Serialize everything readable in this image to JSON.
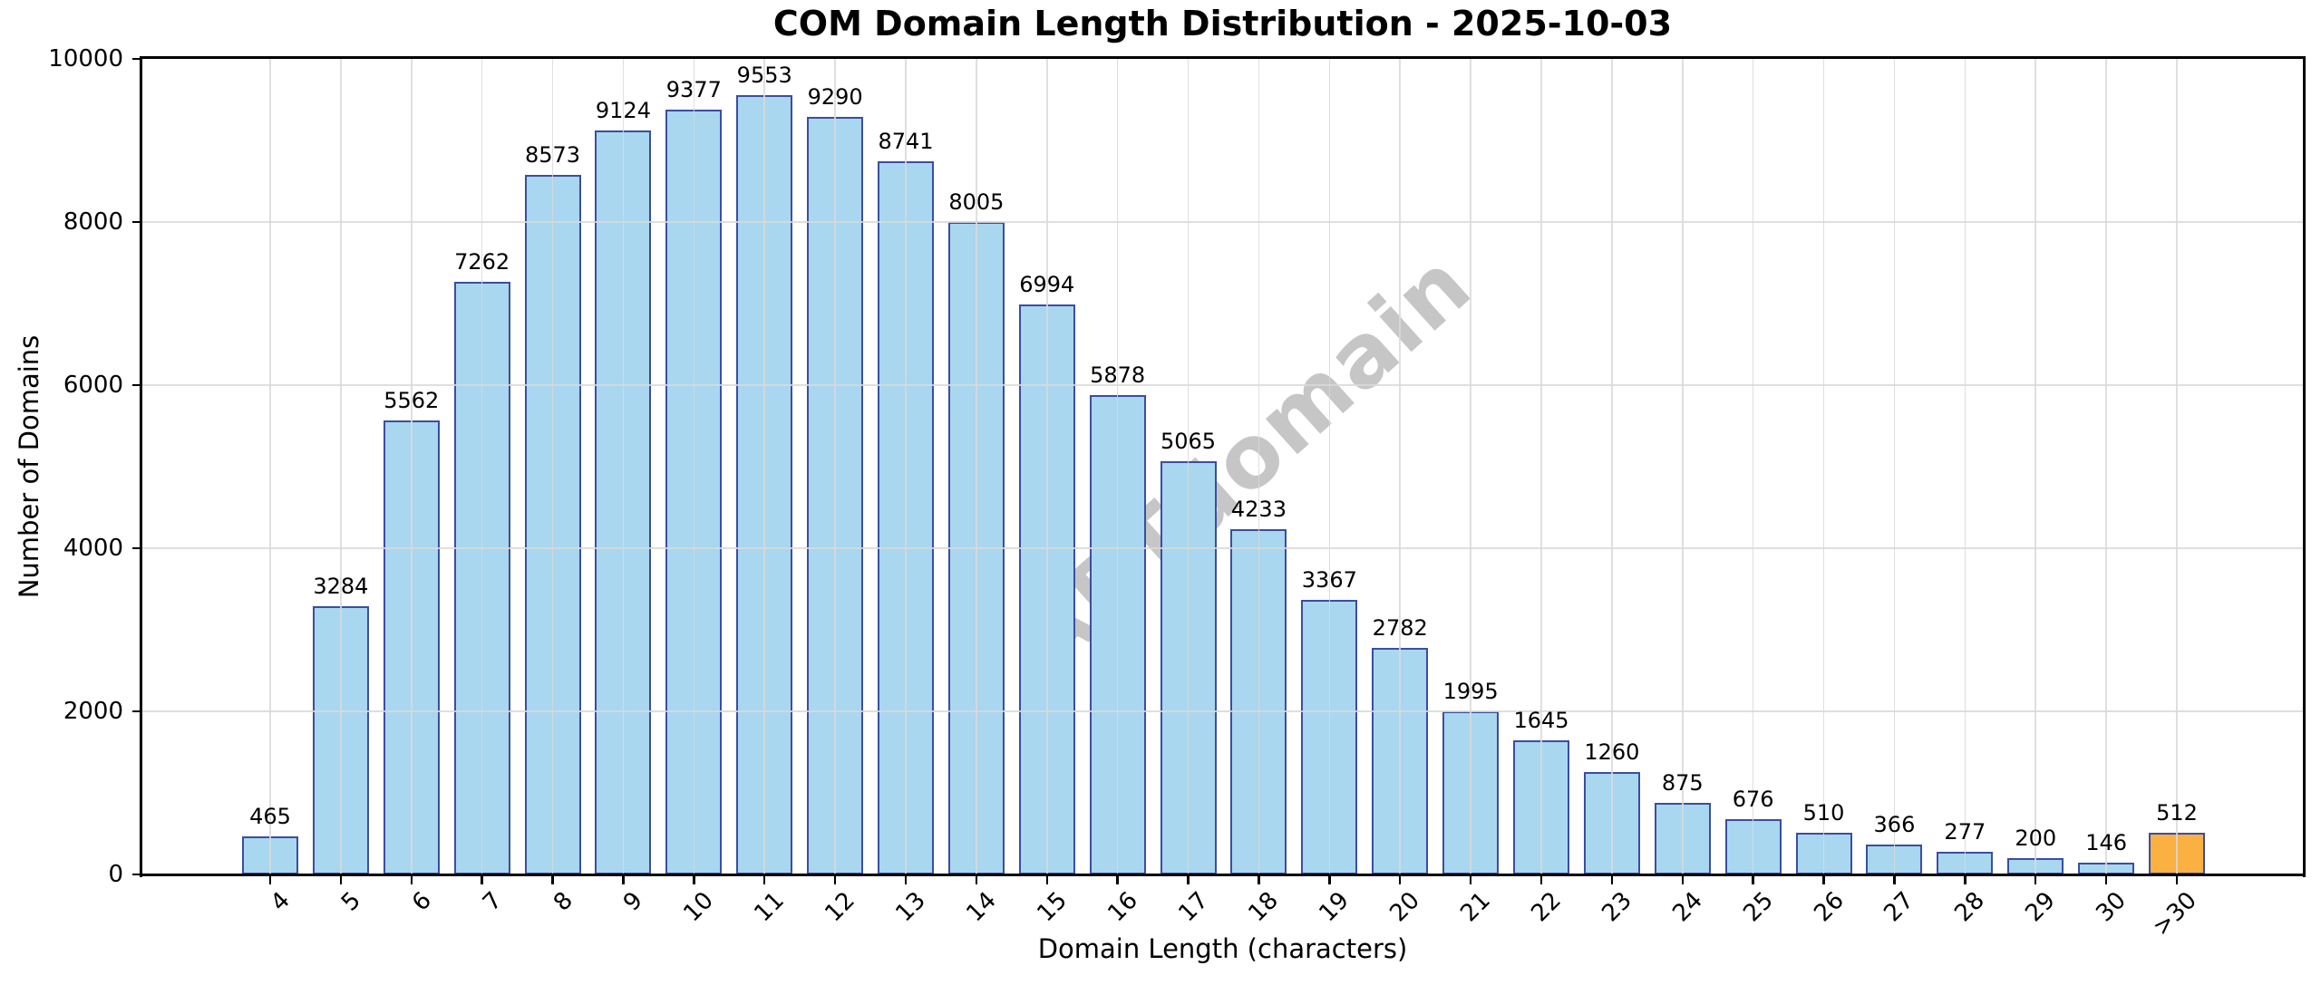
{
  "chart_data": {
    "type": "bar",
    "title": "COM Domain Length Distribution - 2025-10-03",
    "xlabel": "Domain Length (characters)",
    "ylabel": "Number of Domains",
    "watermark": "ABTdomain",
    "categories": [
      "4",
      "5",
      "6",
      "7",
      "8",
      "9",
      "10",
      "11",
      "12",
      "13",
      "14",
      "15",
      "16",
      "17",
      "18",
      "19",
      "20",
      "21",
      "22",
      "23",
      "24",
      "25",
      "26",
      "27",
      "28",
      "29",
      "30",
      ">30"
    ],
    "values": [
      465,
      3284,
      5562,
      7262,
      8573,
      9124,
      9377,
      9553,
      9290,
      8741,
      8005,
      6994,
      5878,
      5065,
      4233,
      3367,
      2782,
      1995,
      1645,
      1260,
      875,
      676,
      510,
      366,
      277,
      200,
      146,
      512
    ],
    "bar_value_labels": true,
    "highlight_category": ">30",
    "ylim": [
      0,
      10000
    ],
    "yticks": [
      0,
      2000,
      4000,
      6000,
      8000,
      10000
    ],
    "grid": true,
    "legend": false,
    "colors": {
      "bar_fill": "#A9D7EF",
      "bar_fill_highlight": "#FBB042",
      "bar_edge": "#3B4DA2",
      "grid": "#D9D9D9",
      "spine": "#000000",
      "text": "#000000",
      "watermark": "#787878",
      "background": "#FFFFFF"
    }
  }
}
